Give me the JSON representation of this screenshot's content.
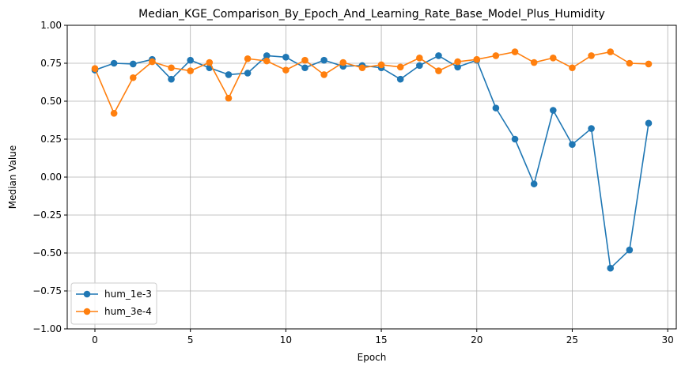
{
  "chart_data": {
    "type": "line",
    "title": "Median_KGE_Comparison_By_Epoch_And_Learning_Rate_Base_Model_Plus_Humidity",
    "xlabel": "Epoch",
    "ylabel": "Median Value",
    "xlim": [
      -1.45,
      30.45
    ],
    "ylim": [
      -1.0,
      1.0
    ],
    "xticks": [
      0,
      5,
      10,
      15,
      20,
      25,
      30
    ],
    "yticks": [
      -1.0,
      -0.75,
      -0.5,
      -0.25,
      0.0,
      0.25,
      0.5,
      0.75,
      1.0
    ],
    "xtick_labels": [
      "0",
      "5",
      "10",
      "15",
      "20",
      "25",
      "30"
    ],
    "ytick_labels": [
      "−1.00",
      "−0.75",
      "−0.50",
      "−0.25",
      "0.00",
      "0.25",
      "0.50",
      "0.75",
      "1.00"
    ],
    "grid": true,
    "legend_position": "lower-left",
    "x": [
      0,
      1,
      2,
      3,
      4,
      5,
      6,
      7,
      8,
      9,
      10,
      11,
      12,
      13,
      14,
      15,
      16,
      17,
      18,
      19,
      20,
      21,
      22,
      23,
      24,
      25,
      26,
      27,
      28,
      29
    ],
    "series": [
      {
        "name": "hum_1e-3",
        "color": "#1f77b4",
        "values": [
          0.705,
          0.75,
          0.745,
          0.775,
          0.645,
          0.77,
          0.72,
          0.675,
          0.685,
          0.8,
          0.79,
          0.72,
          0.77,
          0.73,
          0.735,
          0.72,
          0.645,
          0.735,
          0.8,
          0.725,
          0.77,
          0.455,
          0.25,
          -0.045,
          0.44,
          0.215,
          0.32,
          -0.6,
          -0.48,
          0.355
        ]
      },
      {
        "name": "hum_3e-4",
        "color": "#ff7f0e",
        "values": [
          0.715,
          0.42,
          0.655,
          0.76,
          0.72,
          0.7,
          0.755,
          0.52,
          0.78,
          0.765,
          0.705,
          0.77,
          0.675,
          0.755,
          0.72,
          0.74,
          0.725,
          0.785,
          0.7,
          0.76,
          0.775,
          0.8,
          0.825,
          0.755,
          0.785,
          0.72,
          0.8,
          0.825,
          0.75,
          0.745
        ]
      }
    ]
  }
}
